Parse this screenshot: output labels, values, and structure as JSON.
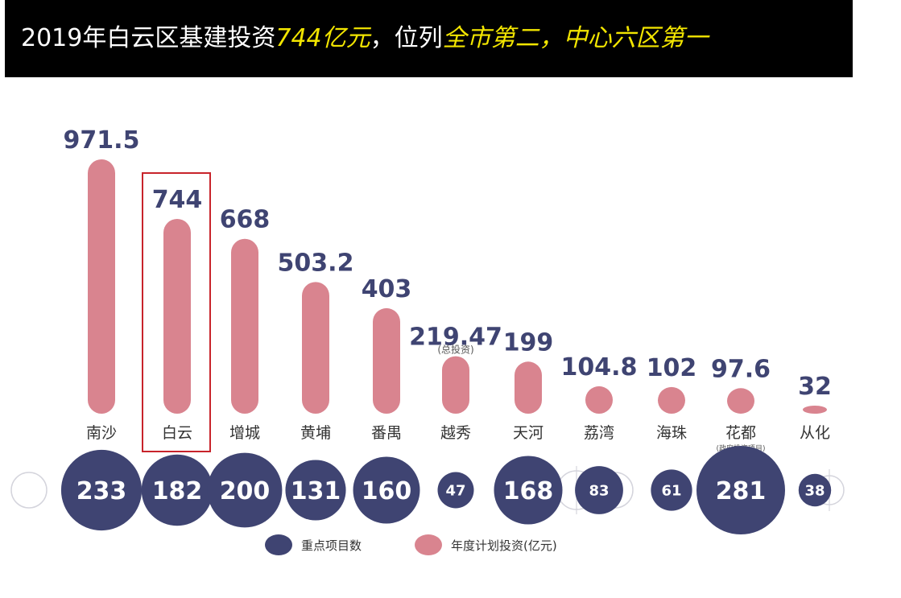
{
  "banner": {
    "title_parts": [
      {
        "text": "2019年白云区基建投资",
        "highlight": false
      },
      {
        "text": "744亿元",
        "highlight": true
      },
      {
        "text": "，位列",
        "highlight": false
      },
      {
        "text": "全市第二，中心六区第一",
        "highlight": true
      }
    ],
    "highlight_color": "#f2e500",
    "background_color": "#000000"
  },
  "chart_data": {
    "type": "bar",
    "categories": [
      "南沙",
      "白云",
      "增城",
      "黄埔",
      "番禺",
      "越秀",
      "天河",
      "荔湾",
      "海珠",
      "花都",
      "从化"
    ],
    "series": [
      {
        "name": "年度计划投资(亿元)",
        "values": [
          971.5,
          744,
          668,
          503.2,
          403,
          219.47,
          199,
          104.8,
          102,
          97.6,
          32
        ],
        "color": "#d9848f"
      },
      {
        "name": "重点项目数",
        "values": [
          233,
          182,
          200,
          131,
          160,
          47,
          168,
          83,
          61,
          281,
          38
        ],
        "color": "#3f4472"
      }
    ],
    "value_labels": [
      "971.5",
      "744",
      "668",
      "503.2",
      "403",
      "219.47",
      "199",
      "104.8",
      "102",
      "97.6",
      "32"
    ],
    "count_labels": [
      "233",
      "182",
      "200",
      "131",
      "160",
      "47",
      "168",
      "83",
      "61",
      "281",
      "38"
    ],
    "annotations": [
      {
        "category": "越秀",
        "text": "(总投资)"
      },
      {
        "category": "花都",
        "text": "(政府投资项目)"
      }
    ],
    "highlight_category": "白云",
    "highlight_color": "#c8242b",
    "value_label_color": "#3f4472",
    "legend_position": "bottom",
    "grid": false,
    "title": "",
    "xlabel": "",
    "ylabel": ""
  }
}
